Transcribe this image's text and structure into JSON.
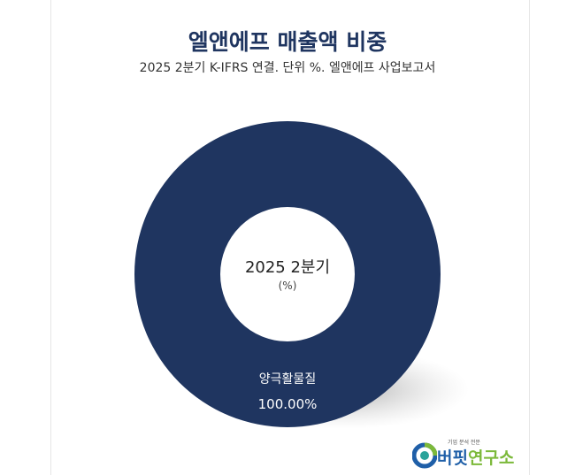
{
  "header": {
    "title": "엘앤에프 매출액 비중",
    "subtitle": "2025 2분기 K-IFRS 연결. 단위 %. 엘앤에프 사업보고서"
  },
  "chart_data": {
    "type": "pie",
    "variant": "donut",
    "title": "엘앤에프 매출액 비중",
    "subtitle": "2025 2분기 K-IFRS 연결. 단위 %. 엘앤에프 사업보고서",
    "center_label": "2025 2분기",
    "center_unit": "(%)",
    "slices": [
      {
        "label": "양극활물질",
        "value": 100.0,
        "display": "100.00%",
        "color": "#1f3560"
      }
    ]
  },
  "logo": {
    "tagline": "기업 분석 전문",
    "name_part1": "버핏",
    "name_part2": "연구소"
  }
}
